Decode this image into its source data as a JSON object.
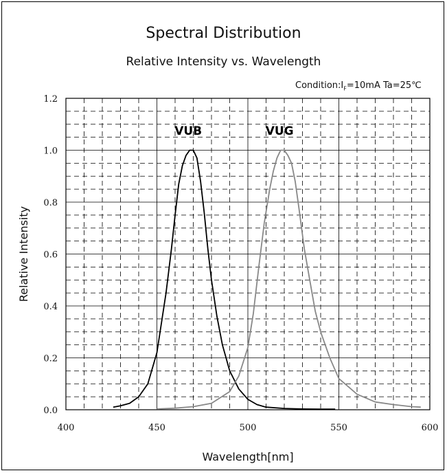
{
  "chart_data": {
    "type": "line",
    "title": "Spectral Distribution",
    "subtitle": "Relative Intensity vs. Wavelength",
    "condition": {
      "prefix": "Condition:I",
      "sub": "F",
      "rest": "=10mA   Ta=25℃"
    },
    "xlabel": "Wavelength[nm]",
    "ylabel": "Relative Intensity",
    "xlim": [
      400,
      600
    ],
    "ylim": [
      0,
      1.2
    ],
    "xticks": [
      "400",
      "450",
      "500",
      "550",
      "600"
    ],
    "yticks": [
      "0.0",
      "0.2",
      "0.4",
      "0.6",
      "0.8",
      "1.0",
      "1.2"
    ],
    "grid": true,
    "series": [
      {
        "name": "VUB",
        "color": "#000000",
        "x": [
          426,
          430,
          435,
          440,
          445,
          450,
          455,
          458,
          460,
          462,
          464,
          466,
          468,
          470,
          472,
          474,
          476,
          478,
          480,
          483,
          486,
          490,
          495,
          500,
          505,
          510,
          520,
          530,
          540,
          548
        ],
        "y": [
          0.01,
          0.015,
          0.025,
          0.05,
          0.1,
          0.22,
          0.45,
          0.62,
          0.75,
          0.87,
          0.94,
          0.98,
          1.0,
          1.0,
          0.97,
          0.88,
          0.76,
          0.62,
          0.5,
          0.36,
          0.25,
          0.15,
          0.08,
          0.04,
          0.02,
          0.01,
          0.005,
          0.003,
          0.002,
          0.002
        ]
      },
      {
        "name": "VUG",
        "color": "#888888",
        "x": [
          450,
          460,
          470,
          480,
          490,
          495,
          500,
          503,
          506,
          509,
          512,
          514,
          516,
          518,
          520,
          522,
          524,
          526,
          528,
          531,
          534,
          537,
          540,
          545,
          550,
          560,
          570,
          580,
          590,
          595
        ],
        "y": [
          0.003,
          0.006,
          0.012,
          0.025,
          0.07,
          0.13,
          0.24,
          0.37,
          0.55,
          0.72,
          0.85,
          0.92,
          0.97,
          1.0,
          1.0,
          0.98,
          0.95,
          0.88,
          0.78,
          0.62,
          0.5,
          0.38,
          0.3,
          0.2,
          0.12,
          0.06,
          0.03,
          0.02,
          0.012,
          0.01
        ]
      }
    ]
  }
}
